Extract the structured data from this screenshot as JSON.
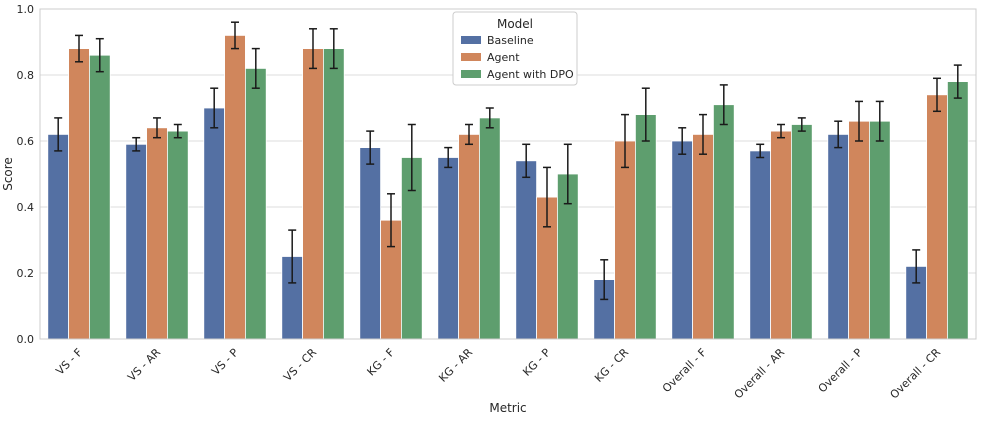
{
  "chart_data": {
    "type": "bar",
    "title": "",
    "xlabel": "Metric",
    "ylabel": "Score",
    "ylim": [
      0,
      1.0
    ],
    "yticks": [
      "0.0",
      "0.2",
      "0.4",
      "0.6",
      "0.8",
      "1.0"
    ],
    "ytick_values": [
      0,
      0.2,
      0.4,
      0.6,
      0.8,
      1.0
    ],
    "grid": true,
    "legend": {
      "title": "Model",
      "placement": "top-center"
    },
    "categories": [
      "VS - F",
      "VS - AR",
      "VS - P",
      "VS - CR",
      "KG - F",
      "KG - AR",
      "KG - P",
      "KG - CR",
      "Overall - F",
      "Overall - AR",
      "Overall - P",
      "Overall - CR"
    ],
    "series": [
      {
        "name": "Baseline",
        "color": "#5470a3",
        "values": [
          0.62,
          0.59,
          0.7,
          0.25,
          0.58,
          0.55,
          0.54,
          0.18,
          0.6,
          0.57,
          0.62,
          0.22
        ],
        "errors": [
          0.05,
          0.02,
          0.06,
          0.08,
          0.05,
          0.03,
          0.05,
          0.06,
          0.04,
          0.02,
          0.04,
          0.05
        ]
      },
      {
        "name": "Agent",
        "color": "#d0865c",
        "values": [
          0.88,
          0.64,
          0.92,
          0.88,
          0.36,
          0.62,
          0.43,
          0.6,
          0.62,
          0.63,
          0.66,
          0.74
        ],
        "errors": [
          0.04,
          0.03,
          0.04,
          0.06,
          0.08,
          0.03,
          0.09,
          0.08,
          0.06,
          0.02,
          0.06,
          0.05
        ]
      },
      {
        "name": "Agent with DPO",
        "color": "#5e9e6e",
        "values": [
          0.86,
          0.63,
          0.82,
          0.88,
          0.55,
          0.67,
          0.5,
          0.68,
          0.71,
          0.65,
          0.66,
          0.78
        ],
        "errors": [
          0.05,
          0.02,
          0.06,
          0.06,
          0.1,
          0.03,
          0.09,
          0.08,
          0.06,
          0.02,
          0.06,
          0.05
        ]
      }
    ]
  }
}
